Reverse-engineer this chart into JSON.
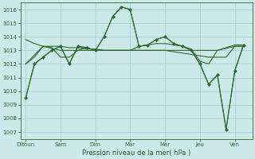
{
  "title": "",
  "xlabel": "Pression niveau de la mer( hPa )",
  "xtick_labels": [
    "Ditoun",
    "Sam",
    "Dim",
    "Mar",
    "Mer",
    "Jeu",
    "Ven"
  ],
  "xtick_positions": [
    0,
    1,
    2,
    3,
    4,
    5,
    6
  ],
  "ylim": [
    1006.5,
    1016.5
  ],
  "yticks": [
    1007,
    1008,
    1009,
    1010,
    1011,
    1012,
    1013,
    1014,
    1015,
    1016
  ],
  "background_color": "#cce8e8",
  "grid_color": "#99cccc",
  "line_color": "#2d6a2d",
  "series1_x": [
    0,
    0.25,
    0.5,
    0.75,
    1.0,
    1.25,
    1.5,
    1.75,
    2.0,
    2.25,
    2.5,
    2.75,
    3.0,
    3.25,
    3.5,
    3.75,
    4.0,
    4.25,
    4.5,
    4.75,
    5.0,
    5.25,
    5.5,
    5.75,
    6.0,
    6.25
  ],
  "series1_y": [
    1009.5,
    1012.0,
    1012.5,
    1013.0,
    1013.3,
    1012.0,
    1013.3,
    1013.2,
    1013.0,
    1014.0,
    1015.5,
    1016.2,
    1016.0,
    1013.3,
    1013.4,
    1013.8,
    1014.0,
    1013.5,
    1013.3,
    1013.0,
    1012.0,
    1010.5,
    1011.2,
    1007.2,
    1011.5,
    1013.4
  ],
  "series2_x": [
    0,
    0.25,
    0.5,
    0.75,
    1.0,
    1.25,
    1.5,
    1.75,
    2.0,
    2.25,
    2.5,
    2.75,
    3.0,
    3.25,
    3.5,
    3.75,
    4.0,
    4.25,
    4.5,
    4.75,
    5.0,
    5.25,
    5.5,
    5.75,
    6.0,
    6.25
  ],
  "series2_y": [
    1013.8,
    1013.5,
    1013.3,
    1013.3,
    1013.3,
    1013.2,
    1013.2,
    1013.1,
    1013.1,
    1013.0,
    1013.0,
    1013.0,
    1013.0,
    1013.0,
    1013.0,
    1013.0,
    1013.0,
    1012.9,
    1012.8,
    1012.7,
    1012.6,
    1012.5,
    1012.5,
    1012.5,
    1013.3,
    1013.3
  ],
  "series3_x": [
    0,
    0.25,
    0.5,
    0.75,
    1.0,
    1.25,
    1.5,
    1.75,
    2.0,
    2.25,
    2.5,
    2.75,
    3.0,
    3.25,
    3.5,
    3.75,
    4.0,
    4.25,
    4.5,
    4.75,
    5.0,
    5.25,
    5.5,
    5.75,
    6.0,
    6.25
  ],
  "series3_y": [
    1012.0,
    1012.5,
    1013.3,
    1013.2,
    1012.5,
    1012.5,
    1013.0,
    1013.2,
    1013.0,
    1013.0,
    1013.0,
    1013.0,
    1013.0,
    1013.3,
    1013.4,
    1013.5,
    1013.5,
    1013.4,
    1013.3,
    1013.1,
    1012.2,
    1012.0,
    1013.0,
    1013.2,
    1013.4,
    1013.4
  ],
  "series4_x": [
    0,
    0.5,
    1.0,
    1.5,
    2.0,
    2.5,
    3.0,
    3.5,
    4.0,
    4.5,
    5.0,
    5.5,
    6.0,
    6.25
  ],
  "series4_y": [
    1012.0,
    1013.3,
    1013.0,
    1013.0,
    1013.0,
    1013.0,
    1013.0,
    1013.0,
    1013.0,
    1013.0,
    1013.0,
    1013.0,
    1013.3,
    1013.3
  ],
  "marker_x": [
    0,
    0.25,
    0.5,
    0.75,
    1.0,
    1.25,
    1.5,
    1.75,
    2.0,
    2.25,
    2.5,
    2.75,
    3.0,
    3.25,
    3.5,
    3.75,
    4.0,
    4.25,
    4.5,
    4.75,
    5.0,
    5.25,
    5.5,
    5.75,
    6.0,
    6.25
  ],
  "marker_y": [
    1009.5,
    1012.0,
    1012.5,
    1013.0,
    1013.3,
    1012.0,
    1013.3,
    1013.2,
    1013.0,
    1014.0,
    1015.5,
    1016.2,
    1016.0,
    1013.3,
    1013.4,
    1013.8,
    1014.0,
    1013.5,
    1013.3,
    1013.0,
    1012.0,
    1010.5,
    1011.2,
    1007.2,
    1011.5,
    1013.4
  ]
}
